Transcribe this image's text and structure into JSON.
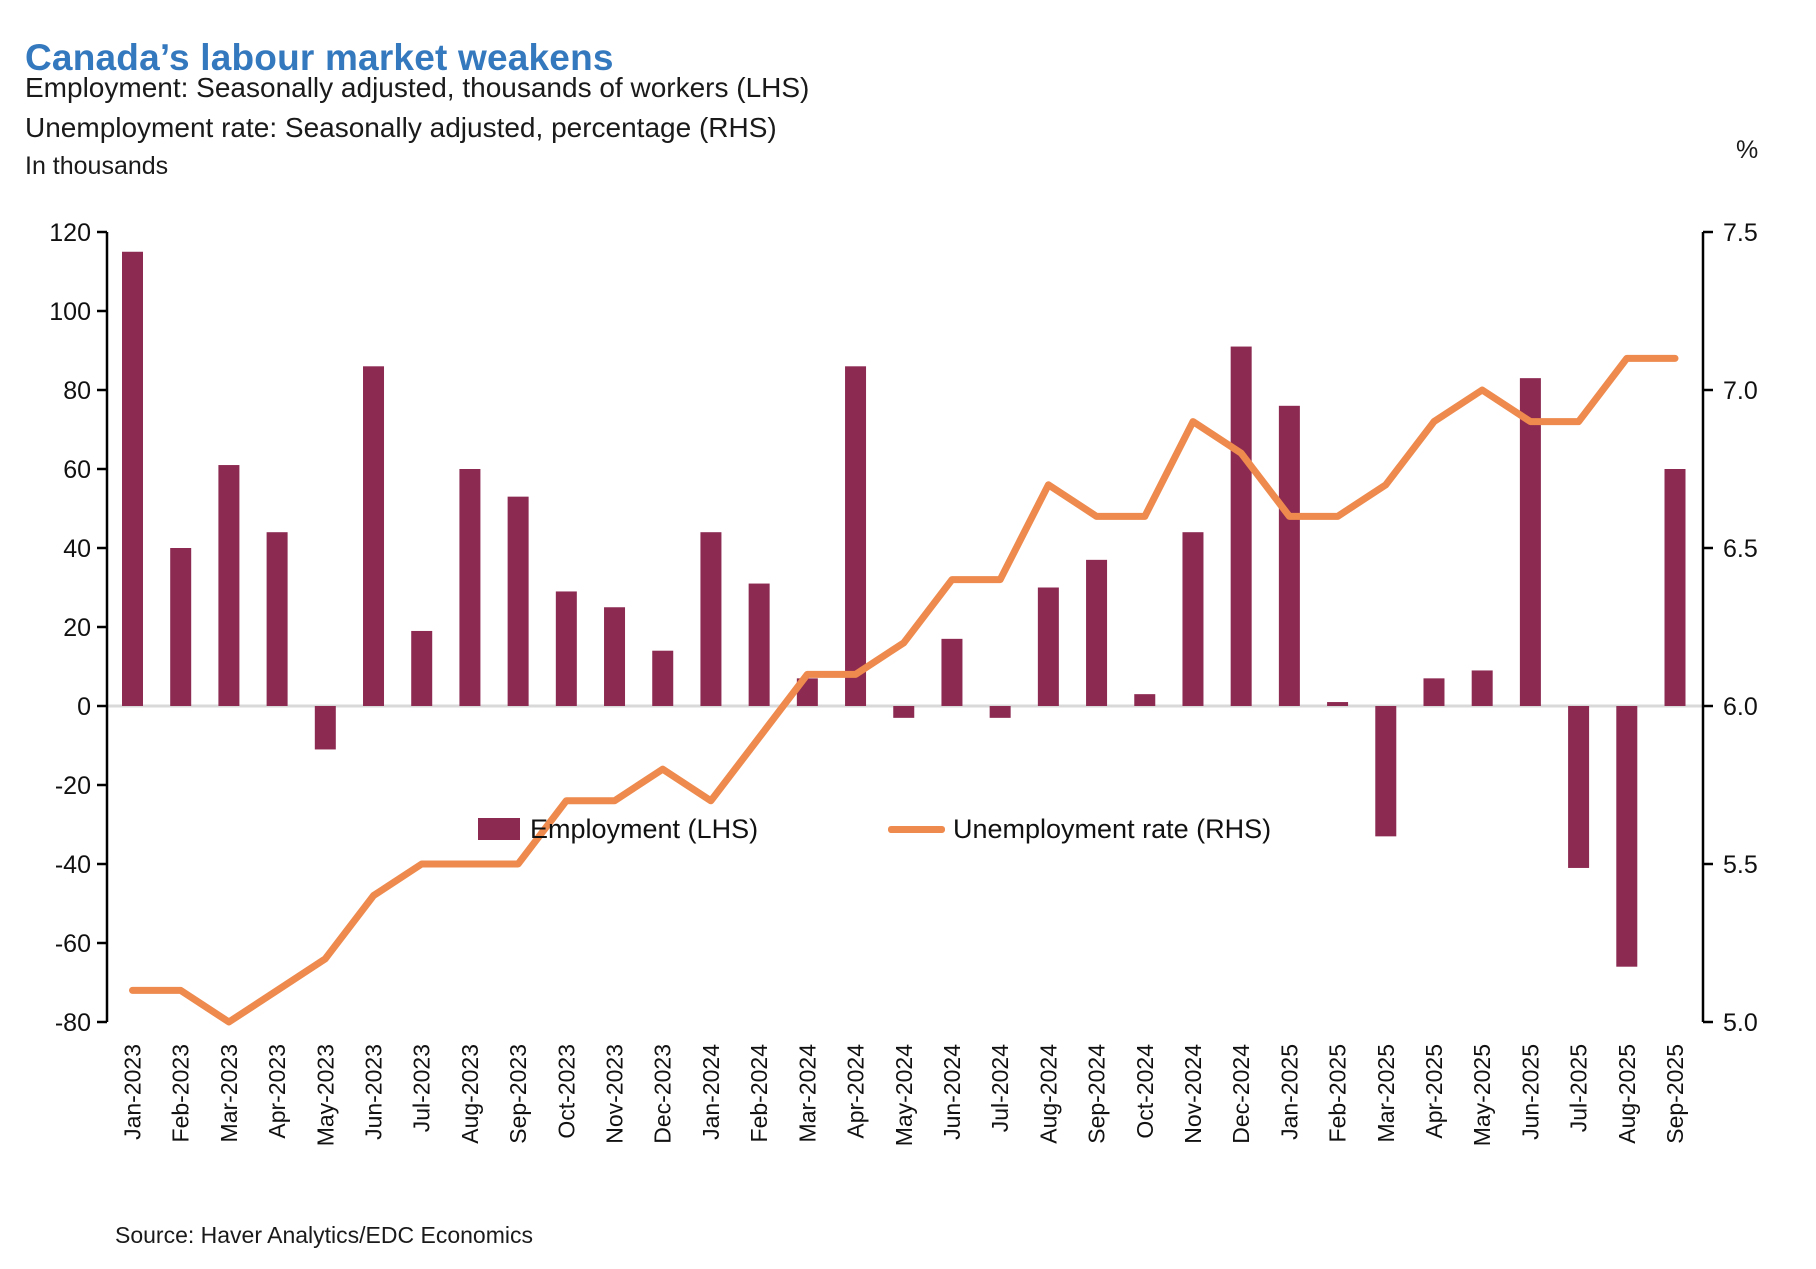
{
  "header": {
    "title": "Canada’s labour market weakens",
    "subtitle1": "Employment: Seasonally adjusted, thousands of workers (LHS)",
    "subtitle2": "Unemployment rate: Seasonally adjusted, percentage (RHS)"
  },
  "axis_left": {
    "unit_label": "In thousands",
    "tick_labels": [
      "120",
      "100",
      "80",
      "60",
      "40",
      "20",
      "0",
      "-20",
      "-40",
      "-60",
      "-80"
    ]
  },
  "axis_right": {
    "unit_label": "%",
    "tick_labels": [
      "7.5",
      "7.0",
      "6.5",
      "6.0",
      "5.5",
      "5.0"
    ]
  },
  "legend": {
    "employment_label": "Employment (LHS)",
    "unemployment_label": "Unemployment rate (RHS)"
  },
  "source": "Source: Haver Analytics/EDC Economics",
  "colors": {
    "title_blue": "#3478BE",
    "bar_maroon": "#8C2A52",
    "line_orange": "#EE8A4D",
    "zero_line_gray": "#D9D9D9",
    "axis_black": "#000000"
  },
  "chart_data": {
    "type": "bar+line combo",
    "title": "Canada’s labour market weakens",
    "categories": [
      "Jan-2023",
      "Feb-2023",
      "Mar-2023",
      "Apr-2023",
      "May-2023",
      "Jun-2023",
      "Jul-2023",
      "Aug-2023",
      "Sep-2023",
      "Oct-2023",
      "Nov-2023",
      "Dec-2023",
      "Jan-2024",
      "Feb-2024",
      "Mar-2024",
      "Apr-2024",
      "May-2024",
      "Jun-2024",
      "Jul-2024",
      "Aug-2024",
      "Sep-2024",
      "Oct-2024",
      "Nov-2024",
      "Dec-2024",
      "Jan-2025",
      "Feb-2025",
      "Mar-2025",
      "Apr-2025",
      "May-2025",
      "Jun-2025",
      "Jul-2025",
      "Aug-2025",
      "Sep-2025"
    ],
    "series": [
      {
        "name": "Employment (LHS)",
        "type": "bar",
        "axis": "left",
        "values": [
          115,
          40,
          61,
          44,
          -11,
          86,
          19,
          60,
          53,
          29,
          25,
          14,
          44,
          31,
          7,
          86,
          -3,
          17,
          -3,
          30,
          37,
          3,
          44,
          91,
          76,
          1,
          -33,
          7,
          9,
          83,
          -41,
          -66,
          60
        ]
      },
      {
        "name": "Unemployment rate (RHS)",
        "type": "line",
        "axis": "right",
        "values": [
          5.1,
          5.1,
          5.0,
          5.1,
          5.2,
          5.4,
          5.5,
          5.5,
          5.5,
          5.7,
          5.7,
          5.8,
          5.7,
          5.9,
          6.1,
          6.1,
          6.2,
          6.4,
          6.4,
          6.7,
          6.6,
          6.6,
          6.9,
          6.8,
          6.6,
          6.6,
          6.7,
          6.9,
          7.0,
          6.9,
          6.9,
          7.1,
          7.1
        ]
      }
    ],
    "ylabel_left": "In thousands",
    "ylabel_right": "%",
    "ylim_left": [
      -80,
      120
    ],
    "ylim_right": [
      5.0,
      7.5
    ],
    "grid": "zero-line only",
    "legend_position": "inside lower middle"
  }
}
